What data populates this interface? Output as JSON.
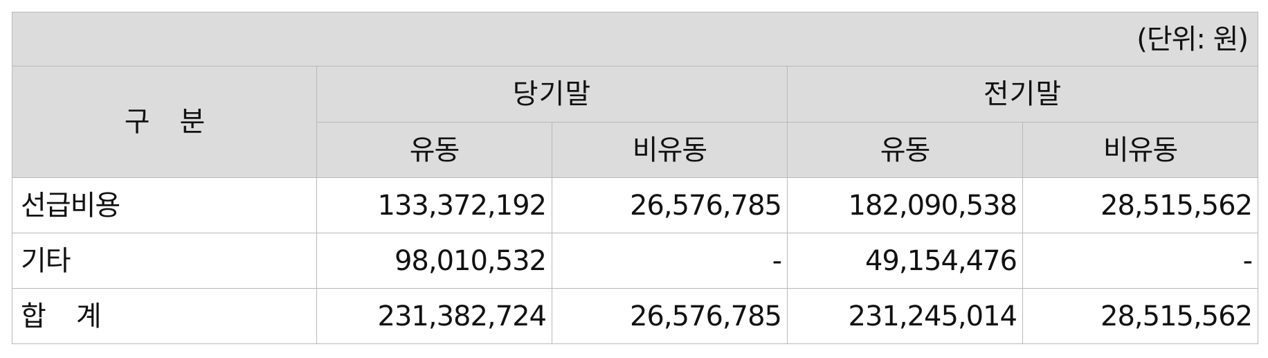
{
  "unit_label": "(단위: 원)",
  "header": {
    "category": [
      "구",
      "분"
    ],
    "current_period": "당기말",
    "prior_period": "전기말",
    "current_sub": [
      "유동",
      "비유동"
    ],
    "prior_sub": [
      "유동",
      "비유동"
    ]
  },
  "rows": [
    {
      "label": "선급비용",
      "label_parts": null,
      "current_current": "133,372,192",
      "current_noncurrent": "26,576,785",
      "prior_current": "182,090,538",
      "prior_noncurrent": "28,515,562"
    },
    {
      "label": "기타",
      "label_parts": null,
      "current_current": "98,010,532",
      "current_noncurrent": "-",
      "prior_current": "49,154,476",
      "prior_noncurrent": "-"
    },
    {
      "label": "합 계",
      "label_parts": [
        "합",
        "계"
      ],
      "current_current": "231,382,724",
      "current_noncurrent": "26,576,785",
      "prior_current": "231,245,014",
      "prior_noncurrent": "28,515,562"
    }
  ]
}
